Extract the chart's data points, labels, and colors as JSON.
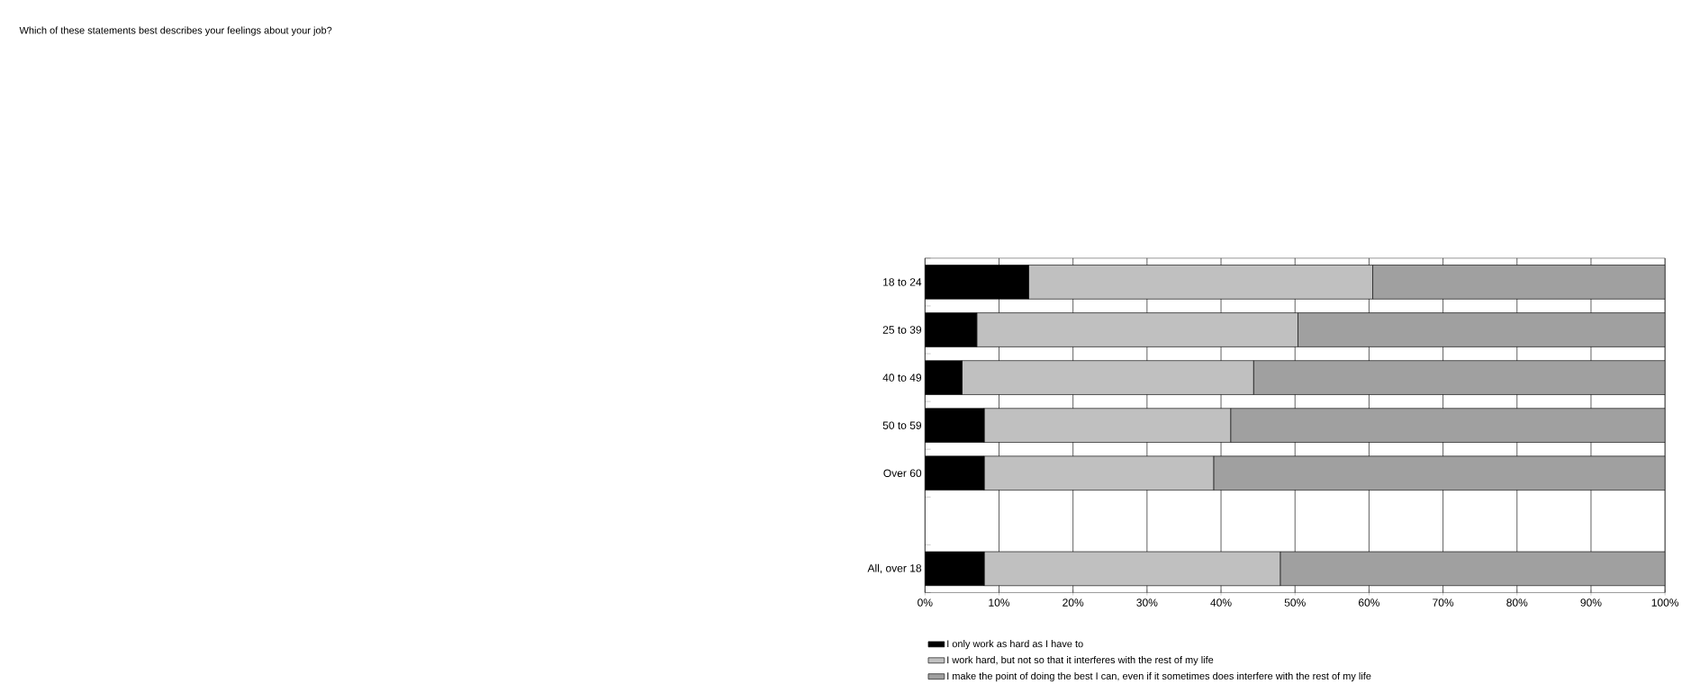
{
  "chart_data": {
    "type": "bar",
    "orientation": "horizontal",
    "stacked": true,
    "title": "Which of these statements best describes your feelings about your job?",
    "categories": [
      "18 to 24",
      "25 to 39",
      "40 to 49",
      "50 to 59",
      "Over 60",
      null,
      "All, over 18"
    ],
    "series": [
      {
        "name": "I only work as hard as I have to",
        "color": "#000000",
        "values": [
          14,
          7,
          5,
          8,
          8,
          null,
          8
        ]
      },
      {
        "name": "I work hard, but not so that it interferes with the rest of my life",
        "color": "#c0c0c0",
        "values": [
          46.5,
          43.4,
          39.4,
          33.3,
          31,
          null,
          40
        ]
      },
      {
        "name": "I make the point of doing the best I can, even if it sometimes does interfere with the rest of my life",
        "color": "#a0a0a0",
        "values": [
          39.5,
          49.6,
          55.6,
          58.7,
          61,
          null,
          52
        ]
      }
    ],
    "xlim": [
      0,
      100
    ],
    "xticks": [
      {
        "value": 0,
        "label": "0%"
      },
      {
        "value": 10,
        "label": "10%"
      },
      {
        "value": 20,
        "label": "20%"
      },
      {
        "value": 30,
        "label": "30%"
      },
      {
        "value": 40,
        "label": "40%"
      },
      {
        "value": 50,
        "label": "50%"
      },
      {
        "value": 60,
        "label": "60%"
      },
      {
        "value": 70,
        "label": "70%"
      },
      {
        "value": 80,
        "label": "80%"
      },
      {
        "value": 90,
        "label": "90%"
      },
      {
        "value": 100,
        "label": "100%"
      }
    ],
    "grid": "x",
    "legend": "bottom left"
  }
}
